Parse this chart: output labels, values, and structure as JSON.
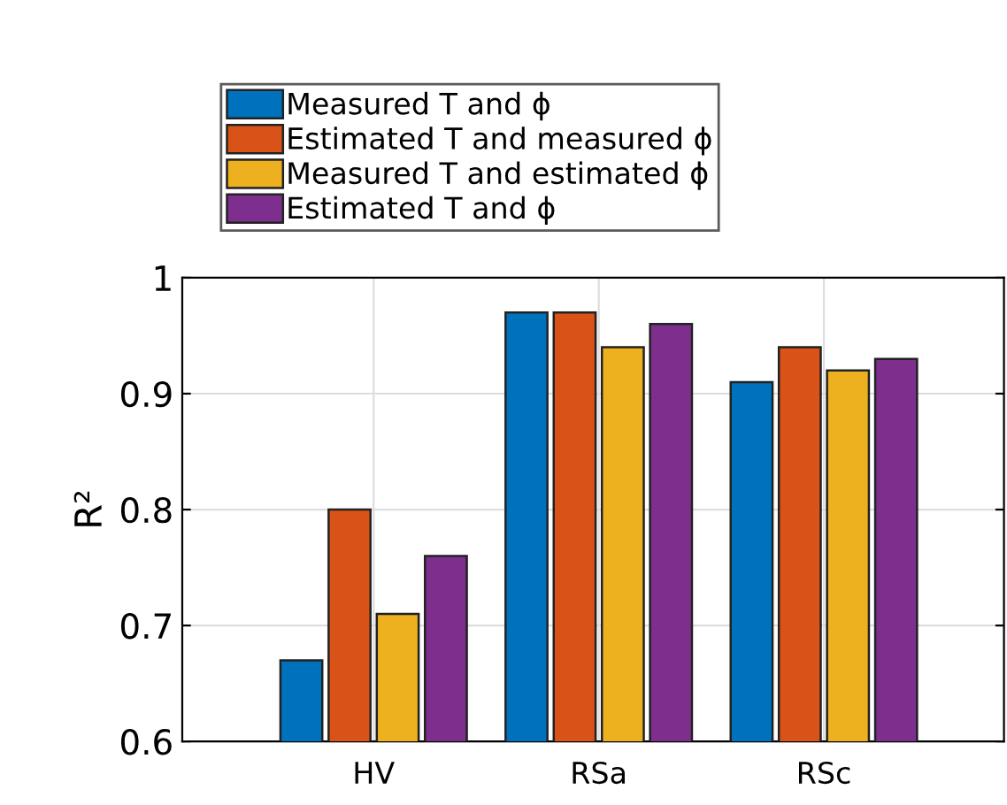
{
  "chart_data": {
    "type": "bar",
    "categories": [
      "HV",
      "RSa",
      "RSc"
    ],
    "series": [
      {
        "name": "Measured T and ϕ",
        "color": "#0072bd",
        "values": [
          0.67,
          0.97,
          0.91
        ]
      },
      {
        "name": "Estimated T and measured ϕ",
        "color": "#d95319",
        "values": [
          0.8,
          0.97,
          0.94
        ]
      },
      {
        "name": "Measured T and estimated ϕ",
        "color": "#edb120",
        "values": [
          0.71,
          0.94,
          0.92
        ]
      },
      {
        "name": "Estimated T and ϕ",
        "color": "#7e2f8e",
        "values": [
          0.76,
          0.96,
          0.93
        ]
      }
    ],
    "ylabel": "R²",
    "ylim": [
      0.6,
      1
    ],
    "yticks": [
      0.6,
      0.7,
      0.8,
      0.9,
      1
    ],
    "grid": true,
    "legend": "top"
  }
}
